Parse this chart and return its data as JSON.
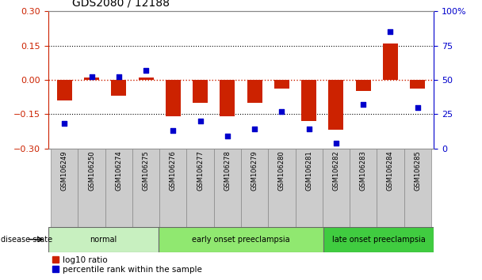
{
  "title": "GDS2080 / 12188",
  "samples": [
    "GSM106249",
    "GSM106250",
    "GSM106274",
    "GSM106275",
    "GSM106276",
    "GSM106277",
    "GSM106278",
    "GSM106279",
    "GSM106280",
    "GSM106281",
    "GSM106282",
    "GSM106283",
    "GSM106284",
    "GSM106285"
  ],
  "log10_ratio": [
    -0.09,
    0.01,
    -0.07,
    0.01,
    -0.16,
    -0.1,
    -0.16,
    -0.1,
    -0.04,
    -0.18,
    -0.22,
    -0.05,
    0.16,
    -0.04
  ],
  "percentile_rank": [
    18,
    52,
    52,
    57,
    13,
    20,
    9,
    14,
    27,
    14,
    4,
    32,
    85,
    30
  ],
  "groups": [
    {
      "label": "normal",
      "start": 0,
      "end": 4,
      "color": "#c8f0c0"
    },
    {
      "label": "early onset preeclampsia",
      "start": 4,
      "end": 10,
      "color": "#90e870"
    },
    {
      "label": "late onset preeclampsia",
      "start": 10,
      "end": 14,
      "color": "#40cc40"
    }
  ],
  "ylim_left": [
    -0.3,
    0.3
  ],
  "ylim_right": [
    0,
    100
  ],
  "yticks_left": [
    -0.3,
    -0.15,
    0,
    0.15,
    0.3
  ],
  "yticks_right": [
    0,
    25,
    50,
    75,
    100
  ],
  "ytick_labels_right": [
    "0",
    "25",
    "50",
    "75",
    "100%"
  ],
  "bar_color": "#cc2200",
  "dot_color": "#0000cc",
  "zero_line_color": "#cc2200",
  "grid_color": "#000000",
  "bg_color": "#ffffff",
  "plot_bg_color": "#ffffff",
  "cell_bg_color": "#cccccc",
  "label_log10": "log10 ratio",
  "label_percentile": "percentile rank within the sample",
  "disease_state_label": "disease state",
  "left_axis_color": "#cc2200",
  "right_axis_color": "#0000cc",
  "title_fontsize": 10,
  "tick_fontsize": 8,
  "bar_width": 0.55
}
